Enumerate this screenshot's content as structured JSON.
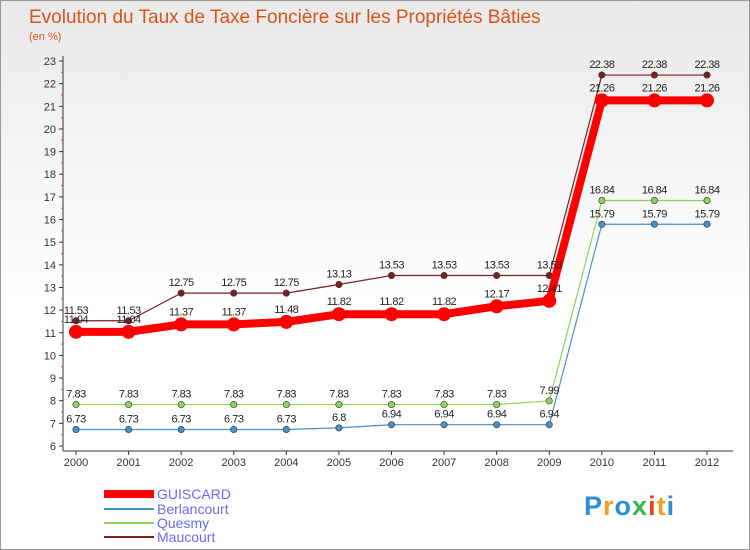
{
  "title": "Evolution du Taux de Taxe Foncière sur les Propriétés Bâties",
  "unit_label": "(en %)",
  "logo": {
    "text": "Proxiti",
    "letters": [
      "P",
      "r",
      "o",
      "x",
      "i",
      "t",
      "i"
    ],
    "colors": [
      "#2f8fd6",
      "#f0a01e",
      "#2f8fd6",
      "#3ab54a",
      "#e8431f",
      "#f0a01e",
      "#2f8fd6"
    ]
  },
  "chart_data": {
    "type": "line",
    "title": "Evolution du Taux de Taxe Foncière sur les Propriétés Bâties",
    "ylabel": "(en %)",
    "xlabel": "",
    "ylim": [
      6,
      23
    ],
    "yticks": [
      "6",
      "7",
      "8",
      "9",
      "10",
      "11",
      "12",
      "13",
      "14",
      "15",
      "16",
      "17",
      "18",
      "19",
      "20",
      "21",
      "22",
      "23"
    ],
    "categories": [
      "2000",
      "2001",
      "2002",
      "2003",
      "2004",
      "2005",
      "2006",
      "2007",
      "2008",
      "2009",
      "2010",
      "2011",
      "2012"
    ],
    "series": [
      {
        "name": "Maucourt",
        "color": "#7a1f23",
        "values": [
          11.53,
          11.53,
          12.75,
          12.75,
          12.75,
          13.13,
          13.53,
          13.53,
          13.53,
          13.53,
          22.38,
          22.38,
          22.38
        ],
        "labels": [
          "11.53",
          "11.53",
          "12.75",
          "12.75",
          "12.75",
          "13.13",
          "13.53",
          "13.53",
          "13.53",
          "13.53",
          "22.38",
          "22.38",
          "22.38"
        ]
      },
      {
        "name": "Quesmy",
        "color": "#8ed35a",
        "values": [
          7.83,
          7.83,
          7.83,
          7.83,
          7.83,
          7.83,
          7.83,
          7.83,
          7.83,
          7.99,
          16.84,
          16.84,
          16.84
        ],
        "labels": [
          "7.83",
          "7.83",
          "7.83",
          "7.83",
          "7.83",
          "7.83",
          "7.83",
          "7.83",
          "7.83",
          "7.99",
          "16.84",
          "16.84",
          "16.84"
        ]
      },
      {
        "name": "Berlancourt",
        "color": "#4a90c8",
        "values": [
          6.73,
          6.73,
          6.73,
          6.73,
          6.73,
          6.8,
          6.94,
          6.94,
          6.94,
          6.94,
          15.79,
          15.79,
          15.79
        ],
        "labels": [
          "6.73",
          "6.73",
          "6.73",
          "6.73",
          "6.73",
          "6.8",
          "6.94",
          "6.94",
          "6.94",
          "6.94",
          "15.79",
          "15.79",
          "15.79"
        ]
      },
      {
        "name": "GUISCARD",
        "color": "#ff0000",
        "values": [
          11.04,
          11.04,
          11.37,
          11.37,
          11.48,
          11.82,
          11.82,
          11.82,
          12.17,
          12.41,
          21.26,
          21.26,
          21.26
        ],
        "labels": [
          "11.04",
          "11.04",
          "11.37",
          "11.37",
          "11.48",
          "11.82",
          "11.82",
          "11.82",
          "12.17",
          "12.41",
          "21.26",
          "21.26",
          "21.26"
        ]
      }
    ],
    "legend": [
      "GUISCARD",
      "Berlancourt",
      "Quesmy",
      "Maucourt"
    ],
    "legend_position": "bottom-left",
    "grid": false
  }
}
